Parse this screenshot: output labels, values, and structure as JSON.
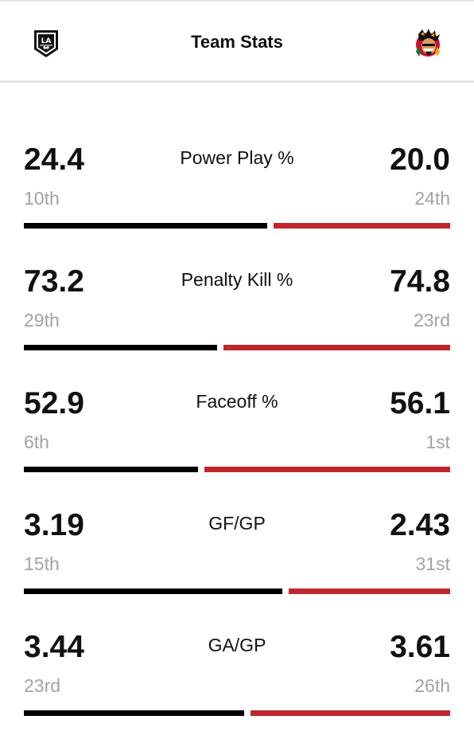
{
  "header": {
    "title": "Team Stats",
    "home_logo": "la-kings-logo",
    "away_logo": "chicago-blackhawks-logo"
  },
  "colors": {
    "home_bar": "#000000",
    "away_bar": "#c0272d",
    "rank_text": "#a3a3a3"
  },
  "stats": [
    {
      "label": "Power Play %",
      "home_value": "24.4",
      "home_rank": "10th",
      "away_value": "20.0",
      "away_rank": "24th",
      "home_share": 0.58
    },
    {
      "label": "Penalty Kill %",
      "home_value": "73.2",
      "home_rank": "29th",
      "away_value": "74.8",
      "away_rank": "23rd",
      "home_share": 0.46
    },
    {
      "label": "Faceoff %",
      "home_value": "52.9",
      "home_rank": "6th",
      "away_value": "56.1",
      "away_rank": "1st",
      "home_share": 0.415
    },
    {
      "label": "GF/GP",
      "home_value": "3.19",
      "home_rank": "15th",
      "away_value": "2.43",
      "away_rank": "31st",
      "home_share": 0.615
    },
    {
      "label": "GA/GP",
      "home_value": "3.44",
      "home_rank": "23rd",
      "away_value": "3.61",
      "away_rank": "26th",
      "home_share": 0.525
    }
  ]
}
